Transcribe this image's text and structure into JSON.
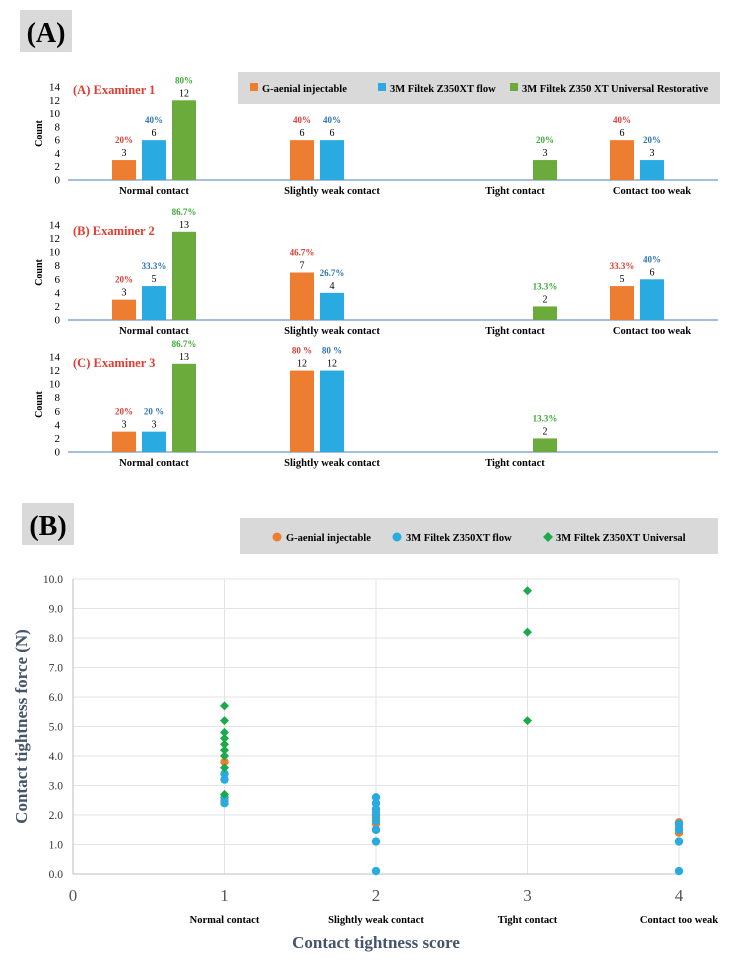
{
  "colors": {
    "orange": "#ED7D31",
    "blue": "#29ABE2",
    "green": "#6AAB3C",
    "greenMarker": "#1AAA4B",
    "red": "#E03C31",
    "darkBlue": "#2E74B5",
    "labelGreen": "#3BAA35",
    "axisTitle": "#44546A",
    "panelGrey": "#D9D9D9"
  },
  "panel_a": {
    "label": "(A)",
    "legend": [
      "G-aenial injectable",
      "3M Filtek Z350XT flow",
      "3M Filtek Z350 XT Universal Restorative"
    ]
  },
  "panel_b": {
    "label": "(B)",
    "legend": [
      "G-aenial injectable",
      "3M Filtek Z350XT flow",
      "3M Filtek Z350XT Universal"
    ]
  },
  "chart_data": [
    {
      "type": "bar",
      "title": "(A) Examiner 1",
      "ylabel": "Count",
      "ylim": [
        0,
        14
      ],
      "yticks": [
        0,
        2,
        4,
        6,
        8,
        10,
        12,
        14
      ],
      "categories": [
        "Normal contact",
        "Slightly weak contact",
        "Tight contact",
        "Contact too weak"
      ],
      "series": [
        {
          "name": "G-aenial injectable",
          "values": [
            3,
            6,
            null,
            6
          ],
          "percent_labels": [
            "20%",
            "40%",
            "",
            "40%"
          ]
        },
        {
          "name": "3M Filtek Z350XT flow",
          "values": [
            6,
            6,
            null,
            3
          ],
          "percent_labels": [
            "40%",
            "40%",
            "",
            "20%"
          ]
        },
        {
          "name": "3M Filtek Z350 XT Universal Restorative",
          "values": [
            12,
            null,
            3,
            null
          ],
          "percent_labels": [
            "80%",
            "",
            "20%",
            ""
          ]
        }
      ]
    },
    {
      "type": "bar",
      "title": "(B) Examiner 2",
      "ylabel": "Count",
      "ylim": [
        0,
        14
      ],
      "yticks": [
        0,
        2,
        4,
        6,
        8,
        10,
        12,
        14
      ],
      "categories": [
        "Normal contact",
        "Slightly weak contact",
        "Tight contact",
        "Contact too weak"
      ],
      "series": [
        {
          "name": "G-aenial injectable",
          "values": [
            3,
            7,
            null,
            5
          ],
          "percent_labels": [
            "20%",
            "46.7%",
            "",
            "33.3%"
          ]
        },
        {
          "name": "3M Filtek Z350XT flow",
          "values": [
            5,
            4,
            null,
            6
          ],
          "percent_labels": [
            "33.3%",
            "26.7%",
            "",
            "40%"
          ]
        },
        {
          "name": "3M Filtek Z350 XT Universal Restorative",
          "values": [
            13,
            null,
            2,
            null
          ],
          "percent_labels": [
            "86.7%",
            "",
            "13.3%",
            ""
          ]
        }
      ]
    },
    {
      "type": "bar",
      "title": "(C) Examiner 3",
      "ylabel": "Count",
      "ylim": [
        0,
        14
      ],
      "yticks": [
        0,
        2,
        4,
        6,
        8,
        10,
        12,
        14
      ],
      "categories": [
        "Normal contact",
        "Slightly weak contact",
        "Tight contact"
      ],
      "series": [
        {
          "name": "G-aenial injectable",
          "values": [
            3,
            12,
            null
          ],
          "percent_labels": [
            "20%",
            "80 %",
            ""
          ]
        },
        {
          "name": "3M Filtek Z350XT flow",
          "values": [
            3,
            12,
            null
          ],
          "percent_labels": [
            "20 %",
            "80 %",
            ""
          ]
        },
        {
          "name": "3M Filtek Z350 XT Universal Restorative",
          "values": [
            13,
            null,
            2
          ],
          "percent_labels": [
            "86.7%",
            "",
            "13.3%"
          ]
        }
      ]
    },
    {
      "type": "scatter",
      "xlabel": "Contact tightness score",
      "ylabel": "Contact tightness force (N)",
      "xlim": [
        0,
        4
      ],
      "ylim": [
        0,
        10
      ],
      "xticks": [
        0,
        1,
        2,
        3,
        4
      ],
      "yticks": [
        "0.0",
        "1.0",
        "2.0",
        "3.0",
        "4.0",
        "5.0",
        "6.0",
        "7.0",
        "8.0",
        "9.0",
        "10.0"
      ],
      "category_labels": [
        "Normal contact",
        "Slightly weak contact",
        "Tight contact",
        "Contact too weak"
      ],
      "grid": true,
      "series": [
        {
          "name": "G-aenial injectable",
          "marker": "circle",
          "points": [
            [
              1,
              3.8
            ],
            [
              1,
              2.5
            ],
            [
              2,
              1.5
            ],
            [
              2,
              1.7
            ],
            [
              2,
              1.9
            ],
            [
              2,
              2.1
            ],
            [
              4,
              1.4
            ],
            [
              4,
              1.6
            ],
            [
              4,
              1.75
            ]
          ]
        },
        {
          "name": "3M Filtek Z350XT flow",
          "marker": "circle",
          "points": [
            [
              1,
              2.4
            ],
            [
              1,
              2.6
            ],
            [
              1,
              3.2
            ],
            [
              1,
              3.4
            ],
            [
              2,
              0.1
            ],
            [
              2,
              1.1
            ],
            [
              2,
              1.5
            ],
            [
              2,
              1.8
            ],
            [
              2,
              2.0
            ],
            [
              2,
              2.2
            ],
            [
              2,
              2.4
            ],
            [
              2,
              2.6
            ],
            [
              4,
              0.1
            ],
            [
              4,
              1.1
            ],
            [
              4,
              1.5
            ],
            [
              4,
              1.7
            ]
          ]
        },
        {
          "name": "3M Filtek Z350XT Universal",
          "marker": "diamond",
          "points": [
            [
              1,
              2.7
            ],
            [
              1,
              3.6
            ],
            [
              1,
              4.0
            ],
            [
              1,
              4.2
            ],
            [
              1,
              4.4
            ],
            [
              1,
              4.6
            ],
            [
              1,
              4.8
            ],
            [
              1,
              5.2
            ],
            [
              1,
              5.7
            ],
            [
              3,
              5.2
            ],
            [
              3,
              8.2
            ],
            [
              3,
              9.6
            ]
          ]
        }
      ]
    }
  ]
}
